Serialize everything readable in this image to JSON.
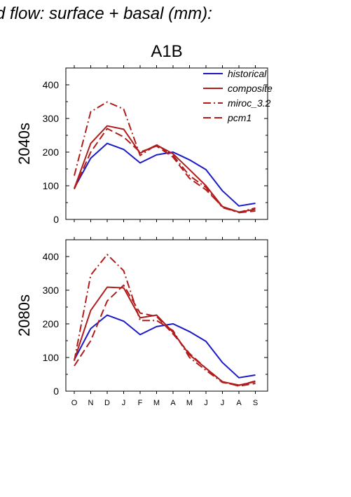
{
  "figure": {
    "title": "d flow: surface + basal (mm):",
    "scenario": "A1B"
  },
  "chart_data": [
    {
      "type": "line",
      "panel_label": "2040s",
      "categories": [
        "O",
        "N",
        "D",
        "J",
        "F",
        "M",
        "A",
        "M",
        "J",
        "J",
        "A",
        "S"
      ],
      "ylim": [
        0,
        450
      ],
      "yticks": [
        0,
        100,
        200,
        300,
        400
      ],
      "grid": false,
      "legend": {
        "placement": "top-right"
      },
      "series": [
        {
          "name": "historical",
          "color": "#1a1ac8",
          "dash": "solid",
          "values": [
            93,
            182,
            226,
            208,
            168,
            192,
            200,
            177,
            148,
            85,
            40,
            48
          ]
        },
        {
          "name": "composite",
          "color": "#b01c1c",
          "dash": "solid",
          "values": [
            92,
            226,
            278,
            268,
            197,
            221,
            195,
            148,
            100,
            38,
            22,
            30
          ]
        },
        {
          "name": "miroc_3.2",
          "color": "#b01c1c",
          "dash": "dashdot",
          "values": [
            130,
            320,
            349,
            328,
            190,
            222,
            190,
            130,
            95,
            35,
            21,
            34
          ]
        },
        {
          "name": "pcm1",
          "color": "#b01c1c",
          "dash": "dashed",
          "values": [
            90,
            200,
            270,
            245,
            200,
            218,
            185,
            122,
            88,
            38,
            20,
            25
          ]
        }
      ]
    },
    {
      "type": "line",
      "panel_label": "2080s",
      "categories": [
        "O",
        "N",
        "D",
        "J",
        "F",
        "M",
        "A",
        "M",
        "J",
        "J",
        "A",
        "S"
      ],
      "ylim": [
        0,
        450
      ],
      "yticks": [
        0,
        100,
        200,
        300,
        400
      ],
      "grid": false,
      "series": [
        {
          "name": "historical",
          "color": "#1a1ac8",
          "dash": "solid",
          "values": [
            93,
            186,
            226,
            208,
            168,
            192,
            200,
            177,
            148,
            85,
            40,
            48
          ]
        },
        {
          "name": "composite",
          "color": "#b01c1c",
          "dash": "solid",
          "values": [
            92,
            240,
            309,
            307,
            218,
            226,
            175,
            108,
            68,
            28,
            18,
            28
          ]
        },
        {
          "name": "miroc_3.2",
          "color": "#b01c1c",
          "dash": "dashdot",
          "values": [
            90,
            345,
            406,
            358,
            210,
            210,
            180,
            100,
            62,
            26,
            17,
            30
          ]
        },
        {
          "name": "pcm1",
          "color": "#b01c1c",
          "dash": "dashed",
          "values": [
            75,
            150,
            268,
            315,
            232,
            222,
            170,
            112,
            68,
            28,
            15,
            23
          ]
        }
      ]
    }
  ]
}
